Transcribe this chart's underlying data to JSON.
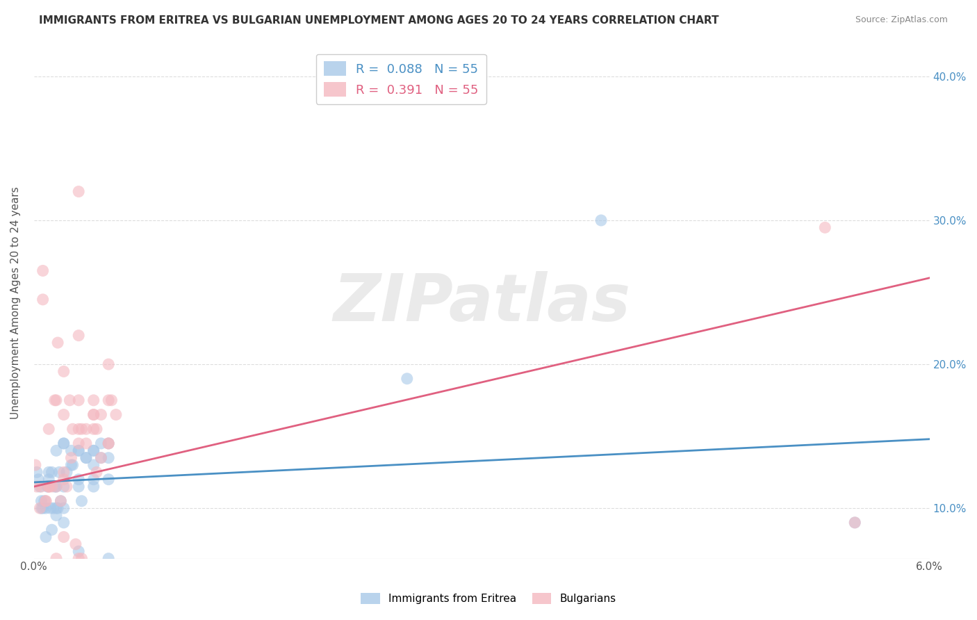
{
  "title": "IMMIGRANTS FROM ERITREA VS BULGARIAN UNEMPLOYMENT AMONG AGES 20 TO 24 YEARS CORRELATION CHART",
  "source": "Source: ZipAtlas.com",
  "ylabel": "Unemployment Among Ages 20 to 24 years",
  "xlim": [
    0.0,
    0.06
  ],
  "ylim": [
    0.065,
    0.42
  ],
  "yticks": [
    0.1,
    0.2,
    0.3,
    0.4
  ],
  "yticklabels": [
    "10.0%",
    "20.0%",
    "30.0%",
    "40.0%"
  ],
  "legend1_label": "R =  0.088   N = 55",
  "legend2_label": "R =  0.391   N = 55",
  "series1_color": "#a8c8e8",
  "series2_color": "#f4b8c0",
  "trend1_color": "#4a90c4",
  "trend2_color": "#e06080",
  "watermark": "ZIPatlas",
  "watermark_color": "#cccccc",
  "background_color": "#ffffff",
  "trend1_x0": 0.0,
  "trend1_y0": 0.118,
  "trend1_x1": 0.06,
  "trend1_y1": 0.148,
  "trend2_x0": 0.0,
  "trend2_y0": 0.115,
  "trend2_x1": 0.06,
  "trend2_y1": 0.26,
  "blue_x": [
    0.0002,
    0.0003,
    0.0004,
    0.0005,
    0.0006,
    0.0007,
    0.0008,
    0.0009,
    0.001,
    0.001,
    0.0011,
    0.0012,
    0.0013,
    0.0014,
    0.0015,
    0.0016,
    0.0017,
    0.0018,
    0.002,
    0.002,
    0.0022,
    0.0025,
    0.0026,
    0.003,
    0.003,
    0.0032,
    0.0035,
    0.004,
    0.004,
    0.0045,
    0.005,
    0.005,
    0.0015,
    0.002,
    0.0025,
    0.003,
    0.0035,
    0.004,
    0.004,
    0.0045,
    0.005,
    0.0005,
    0.0008,
    0.0012,
    0.0015,
    0.002,
    0.003,
    0.004,
    0.005,
    0.003,
    0.0015,
    0.002,
    0.025,
    0.055,
    0.038
  ],
  "blue_y": [
    0.125,
    0.12,
    0.115,
    0.105,
    0.1,
    0.105,
    0.1,
    0.115,
    0.12,
    0.125,
    0.1,
    0.125,
    0.1,
    0.115,
    0.14,
    0.1,
    0.125,
    0.105,
    0.115,
    0.1,
    0.125,
    0.14,
    0.13,
    0.12,
    0.115,
    0.105,
    0.135,
    0.13,
    0.14,
    0.135,
    0.12,
    0.145,
    0.1,
    0.145,
    0.13,
    0.14,
    0.135,
    0.14,
    0.115,
    0.145,
    0.135,
    0.1,
    0.08,
    0.085,
    0.115,
    0.145,
    0.14,
    0.12,
    0.065,
    0.07,
    0.095,
    0.09,
    0.19,
    0.09,
    0.3
  ],
  "pink_x": [
    0.0001,
    0.0002,
    0.0004,
    0.0006,
    0.0008,
    0.001,
    0.001,
    0.0012,
    0.0014,
    0.0016,
    0.0018,
    0.002,
    0.002,
    0.0022,
    0.0024,
    0.0026,
    0.003,
    0.003,
    0.0032,
    0.0035,
    0.004,
    0.004,
    0.0042,
    0.0045,
    0.005,
    0.005,
    0.0052,
    0.0055,
    0.0005,
    0.0008,
    0.001,
    0.0015,
    0.002,
    0.0025,
    0.003,
    0.0035,
    0.004,
    0.0042,
    0.0045,
    0.005,
    0.003,
    0.004,
    0.005,
    0.0015,
    0.003,
    0.002,
    0.0028,
    0.0032,
    0.0006,
    0.001,
    0.0015,
    0.002,
    0.003,
    0.053,
    0.055
  ],
  "pink_y": [
    0.13,
    0.115,
    0.1,
    0.245,
    0.105,
    0.115,
    0.155,
    0.115,
    0.175,
    0.215,
    0.105,
    0.12,
    0.165,
    0.115,
    0.175,
    0.155,
    0.22,
    0.175,
    0.155,
    0.145,
    0.165,
    0.175,
    0.155,
    0.165,
    0.2,
    0.175,
    0.175,
    0.165,
    0.115,
    0.105,
    0.115,
    0.115,
    0.125,
    0.135,
    0.145,
    0.155,
    0.165,
    0.125,
    0.135,
    0.145,
    0.32,
    0.155,
    0.145,
    0.065,
    0.065,
    0.08,
    0.075,
    0.065,
    0.265,
    0.115,
    0.175,
    0.195,
    0.155,
    0.295,
    0.09
  ]
}
